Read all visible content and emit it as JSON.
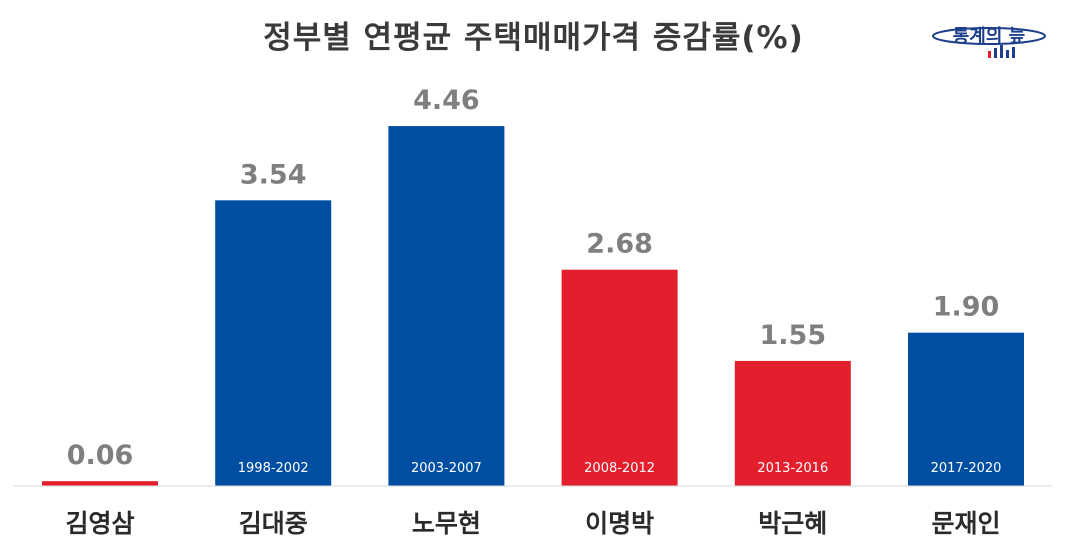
{
  "logo": {
    "text": "통계의 늪",
    "colors": {
      "blue": "#1d3f8c",
      "red": "#e31e2d"
    }
  },
  "chart_data": {
    "type": "bar",
    "title": "정부별 연평균 주택매매가격 증감률(%)",
    "xlabel": "",
    "ylabel": "",
    "ylim": [
      0,
      5
    ],
    "grid": false,
    "legend": "none",
    "categories": [
      "김영삼",
      "김대중",
      "노무현",
      "이명박",
      "박근혜",
      "문재인"
    ],
    "periods": [
      "",
      "1998-2002",
      "2003-2007",
      "2008-2012",
      "2013-2016",
      "2017-2020"
    ],
    "values": [
      0.06,
      3.54,
      4.46,
      2.68,
      1.55,
      1.9
    ],
    "value_labels": [
      "0.06",
      "3.54",
      "4.46",
      "2.68",
      "1.55",
      "1.90"
    ],
    "colors": [
      "#e31e2d",
      "#004ea2",
      "#004ea2",
      "#e31e2d",
      "#e31e2d",
      "#004ea2"
    ]
  }
}
